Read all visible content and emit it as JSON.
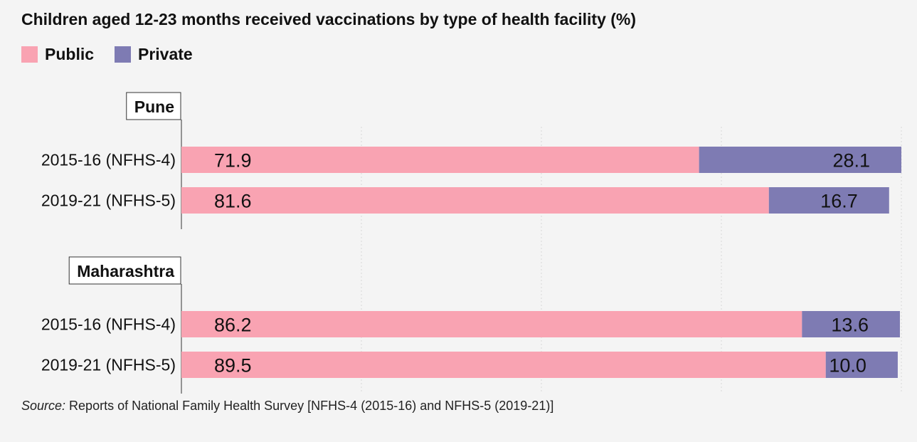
{
  "title": "Children aged 12-23 months received vaccinations by type of health facility (%)",
  "legend": [
    {
      "label": "Public",
      "color": "#f9a3b2"
    },
    {
      "label": "Private",
      "color": "#7e7bb3"
    }
  ],
  "source": {
    "prefix": "Source:",
    "text": " Reports of National Family Health Survey [NFHS-4 (2015-16) and NFHS-5 (2019-21)]"
  },
  "chart_data": {
    "type": "bar",
    "orientation": "horizontal",
    "stacked": true,
    "xlim": [
      0,
      100
    ],
    "grid": true,
    "legend_position": "top-left",
    "groups": [
      {
        "name": "Pune",
        "categories": [
          "2015-16 (NFHS-4)",
          "2019-21 (NFHS-5)"
        ],
        "series": [
          {
            "name": "Public",
            "values": [
              71.9,
              81.6
            ]
          },
          {
            "name": "Private",
            "values": [
              28.1,
              16.7
            ]
          }
        ],
        "labels": {
          "Public": [
            "71.9",
            "81.6"
          ],
          "Private": [
            "28.1",
            "16.7"
          ]
        }
      },
      {
        "name": "Maharashtra",
        "categories": [
          "2015-16 (NFHS-4)",
          "2019-21 (NFHS-5)"
        ],
        "series": [
          {
            "name": "Public",
            "values": [
              86.2,
              89.5
            ]
          },
          {
            "name": "Private",
            "values": [
              13.6,
              10.0
            ]
          }
        ],
        "labels": {
          "Public": [
            "86.2",
            "89.5"
          ],
          "Private": [
            "13.6",
            "10.0"
          ]
        }
      }
    ]
  }
}
